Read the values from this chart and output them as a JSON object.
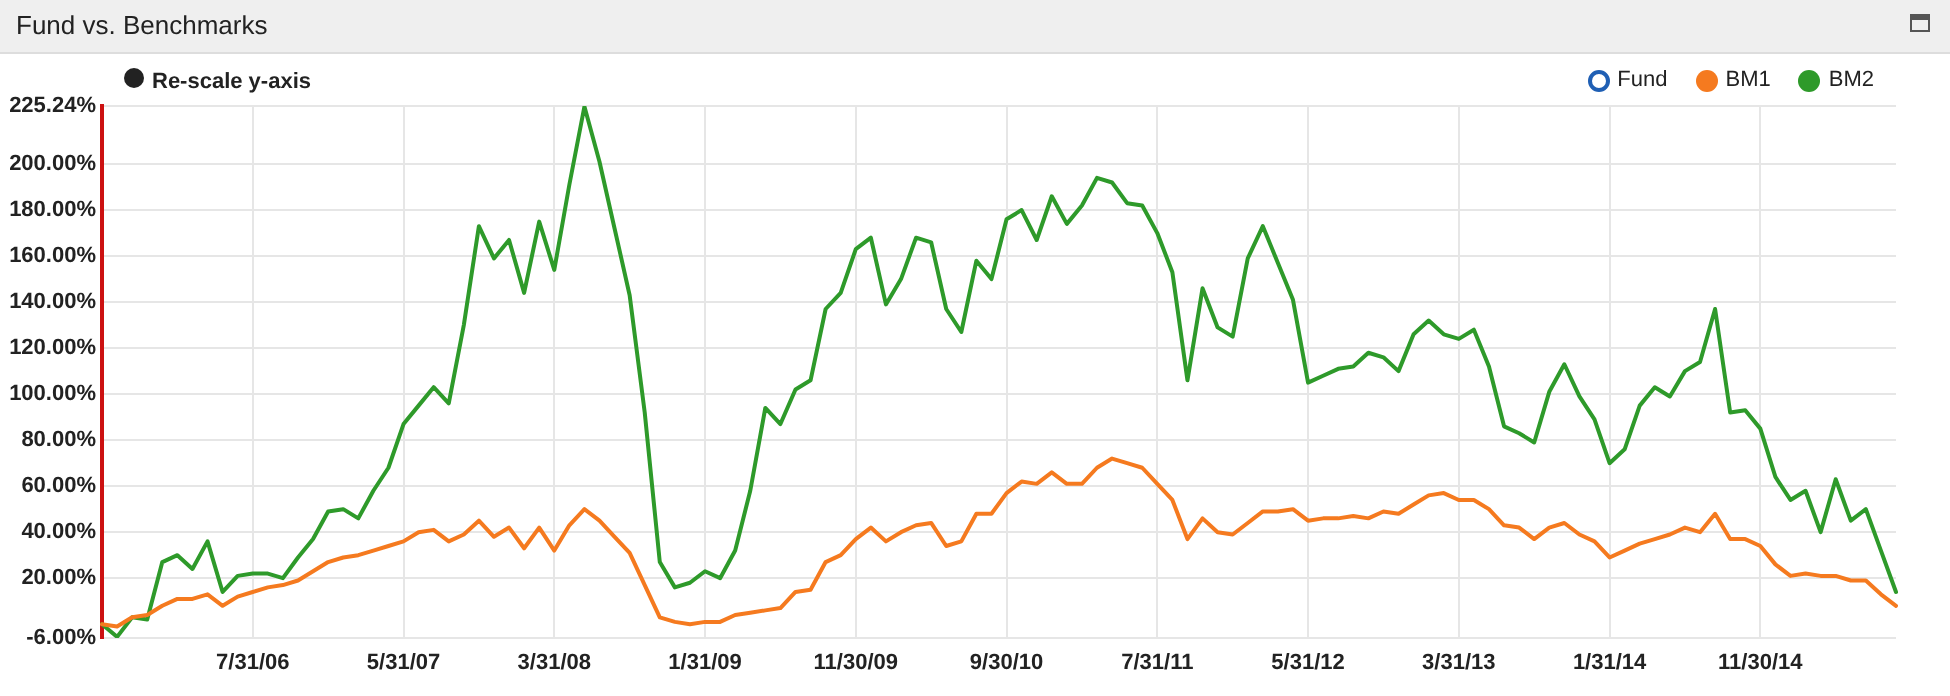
{
  "chart_data": {
    "type": "line",
    "title": "Fund vs. Benchmarks",
    "annotations": [
      "Re-scale y-axis"
    ],
    "categories": [
      null,
      null,
      null,
      null,
      null,
      null,
      null,
      null,
      null,
      null,
      "7/31/06",
      null,
      null,
      null,
      null,
      null,
      null,
      null,
      null,
      null,
      "5/31/07",
      null,
      null,
      null,
      null,
      null,
      null,
      null,
      null,
      null,
      "3/31/08",
      null,
      null,
      null,
      null,
      null,
      null,
      null,
      null,
      null,
      "1/31/09",
      null,
      null,
      null,
      null,
      null,
      null,
      null,
      null,
      null,
      "11/30/09",
      null,
      null,
      null,
      null,
      null,
      null,
      null,
      null,
      null,
      "9/30/10",
      null,
      null,
      null,
      null,
      null,
      null,
      null,
      null,
      null,
      "7/31/11",
      null,
      null,
      null,
      null,
      null,
      null,
      null,
      null,
      null,
      "5/31/12",
      null,
      null,
      null,
      null,
      null,
      null,
      null,
      null,
      null,
      "3/31/13",
      null,
      null,
      null,
      null,
      null,
      null,
      null,
      null,
      null,
      "1/31/14",
      null,
      null,
      null,
      null,
      null,
      null,
      null,
      null,
      null,
      "11/30/14",
      null,
      null,
      null,
      null,
      null,
      null,
      null,
      null,
      null
    ],
    "series": [
      {
        "name": "Fund",
        "color": "#1f5fb4",
        "values": [
          null,
          null,
          null,
          null,
          null,
          null,
          null,
          null,
          null,
          null,
          null,
          null,
          null,
          null,
          null,
          null,
          null,
          null,
          null,
          null,
          null,
          null,
          null,
          null,
          null,
          null,
          null,
          null,
          null,
          null,
          null,
          null,
          null,
          null,
          null,
          null,
          null,
          null,
          null,
          null,
          null,
          null,
          null,
          null,
          null,
          null,
          null,
          null,
          null,
          null,
          null,
          null,
          null,
          null,
          null,
          null,
          null,
          null,
          null,
          null,
          null,
          null,
          null,
          null,
          null,
          null,
          null,
          null,
          null,
          null,
          null,
          null,
          null,
          null,
          null,
          null,
          null,
          null,
          null,
          null,
          null,
          null,
          null,
          null,
          null,
          null,
          null,
          null,
          null,
          null,
          null,
          null,
          null,
          null,
          null,
          null,
          null,
          null,
          null,
          null,
          null,
          null,
          null,
          null,
          null,
          null,
          null,
          null,
          null,
          null,
          null,
          null,
          null,
          null,
          null,
          null,
          null,
          null,
          null,
          null
        ]
      },
      {
        "name": "BM1",
        "color": "#f57a1f",
        "values": [
          0,
          -1,
          3,
          4,
          8,
          11,
          11,
          13,
          8,
          12,
          14,
          16,
          17,
          19,
          23,
          27,
          29,
          30,
          32,
          34,
          36,
          40,
          41,
          36,
          39,
          45,
          38,
          42,
          33,
          42,
          32,
          43,
          50,
          45,
          38,
          31,
          17,
          3,
          1,
          0,
          1,
          1,
          4,
          5,
          6,
          7,
          14,
          15,
          27,
          30,
          37,
          42,
          36,
          40,
          43,
          44,
          34,
          36,
          48,
          48,
          57,
          62,
          61,
          66,
          61,
          61,
          68,
          72,
          70,
          68,
          61,
          54,
          37,
          46,
          40,
          39,
          44,
          49,
          49,
          50,
          45,
          46,
          46,
          47,
          46,
          49,
          48,
          52,
          56,
          57,
          54,
          54,
          50,
          43,
          42,
          37,
          42,
          44,
          39,
          36,
          29,
          32,
          35,
          37,
          39,
          42,
          40,
          48,
          37,
          37,
          34,
          26,
          21,
          22,
          21,
          21,
          19,
          19,
          13,
          8
        ]
      },
      {
        "name": "BM2",
        "color": "#2e9a2a",
        "values": [
          0,
          -5.5,
          3,
          2,
          27,
          30,
          24,
          36,
          14,
          21,
          22,
          22,
          20,
          29,
          37,
          49,
          50,
          46,
          58,
          68,
          87,
          95,
          103,
          96,
          130,
          173,
          159,
          167,
          144,
          175,
          154,
          191,
          225,
          201,
          172,
          143,
          92,
          27,
          16,
          18,
          23,
          20,
          32,
          58,
          94,
          87,
          102,
          106,
          137,
          144,
          163,
          168,
          139,
          150,
          168,
          166,
          137,
          127,
          158,
          150,
          176,
          180,
          167,
          186,
          174,
          182,
          194,
          192,
          183,
          182,
          170,
          153,
          106,
          146,
          129,
          125,
          159,
          173,
          157,
          141,
          105,
          108,
          111,
          112,
          118,
          116,
          110,
          126,
          132,
          126,
          124,
          128,
          112,
          86,
          83,
          79,
          101,
          113,
          99,
          89,
          70,
          76,
          95,
          103,
          99,
          110,
          114,
          137,
          92,
          93,
          85,
          64,
          54,
          58,
          40,
          63,
          45,
          50,
          32,
          14
        ]
      }
    ],
    "ylim": [
      -6,
      225.24
    ],
    "yticks": [
      {
        "value": -6,
        "label": "-6.00%"
      },
      {
        "value": 20,
        "label": "20.00%"
      },
      {
        "value": 40,
        "label": "40.00%"
      },
      {
        "value": 60,
        "label": "60.00%"
      },
      {
        "value": 80,
        "label": "80.00%"
      },
      {
        "value": 100,
        "label": "100.00%"
      },
      {
        "value": 120,
        "label": "120.00%"
      },
      {
        "value": 140,
        "label": "140.00%"
      },
      {
        "value": 160,
        "label": "160.00%"
      },
      {
        "value": 180,
        "label": "180.00%"
      },
      {
        "value": 200,
        "label": "200.00%"
      },
      {
        "value": 225.24,
        "label": "225.24%"
      }
    ],
    "grid": true,
    "legend": "top right",
    "marker": "none",
    "line_style": "solid"
  }
}
